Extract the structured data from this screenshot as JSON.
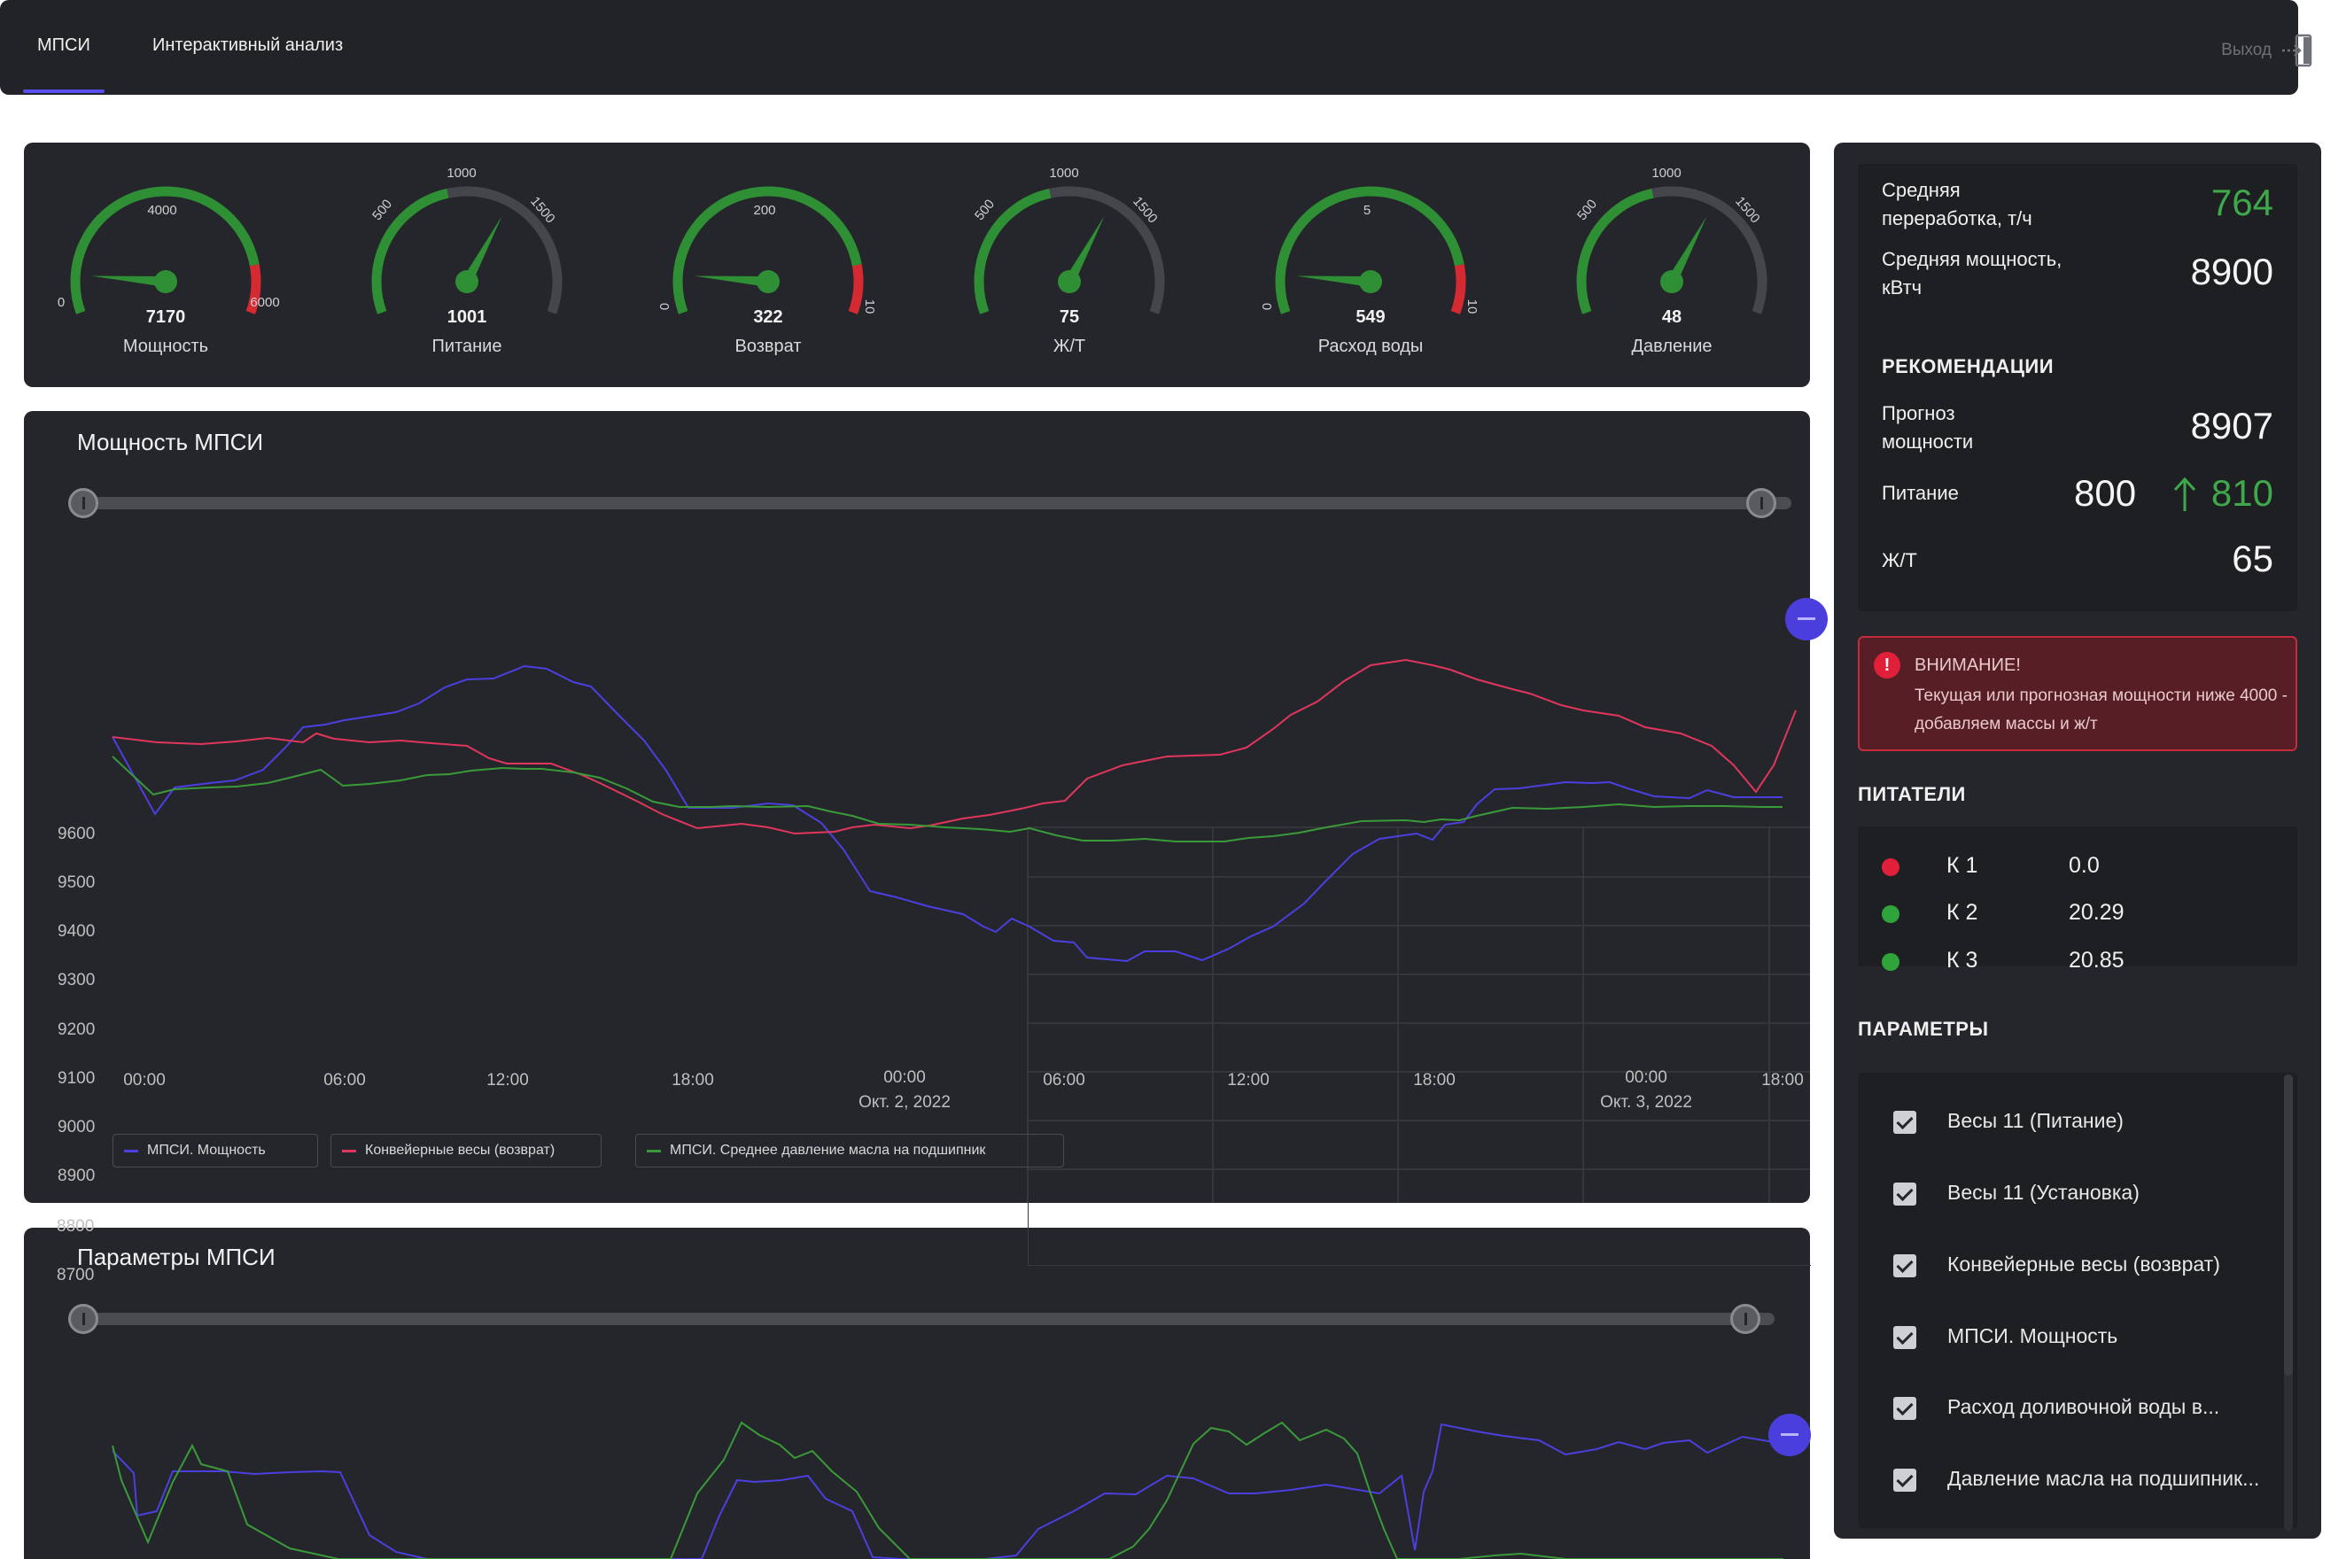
{
  "nav": {
    "tabs": [
      {
        "label": "МПСИ",
        "active": true
      },
      {
        "label": "Интерактивный анализ",
        "active": false
      }
    ],
    "logout_label": "Выход"
  },
  "gauges": [
    {
      "label": "Мощность",
      "value": "7170",
      "ticks": [
        "0",
        "4000",
        "6000"
      ]
    },
    {
      "label": "Питание",
      "value": "1001",
      "ticks": [
        "500",
        "1000",
        "1500"
      ]
    },
    {
      "label": "Возврат",
      "value": "322",
      "ticks": [
        "0",
        "200",
        "10"
      ]
    },
    {
      "label": "Ж/Т",
      "value": "75",
      "ticks": [
        "500",
        "1000",
        "1500"
      ]
    },
    {
      "label": "Расход воды",
      "value": "549",
      "ticks": [
        "0",
        "5",
        "10"
      ]
    },
    {
      "label": "Давление",
      "value": "48",
      "ticks": [
        "500",
        "1000",
        "1500"
      ]
    }
  ],
  "chart1": {
    "title": "Мощность МПСИ",
    "y_ticks": [
      "9600",
      "9500",
      "9400",
      "9300",
      "9200",
      "9100",
      "9000",
      "8900",
      "8800",
      "8700"
    ],
    "x_ticks": [
      {
        "time": "00:00",
        "date": ""
      },
      {
        "time": "06:00",
        "date": ""
      },
      {
        "time": "12:00",
        "date": ""
      },
      {
        "time": "18:00",
        "date": ""
      },
      {
        "time": "00:00",
        "date": "Окт. 2, 2022"
      },
      {
        "time": "06:00",
        "date": ""
      },
      {
        "time": "12:00",
        "date": ""
      },
      {
        "time": "18:00",
        "date": ""
      },
      {
        "time": "00:00",
        "date": "Окт. 3, 2022"
      },
      {
        "time": "18:00",
        "date": ""
      }
    ],
    "legend": [
      {
        "name": "МПСИ. Мощность",
        "color": "#4b3fe0"
      },
      {
        "name": "Конвейерные весы (возврат)",
        "color": "#e0365c"
      },
      {
        "name": "МПСИ. Среднее давление масла на подшипник",
        "color": "#3a9a3a"
      }
    ]
  },
  "chart2": {
    "title": "Параметры  МПСИ"
  },
  "summary": {
    "avg_processing": {
      "label": "Средняя переработка, т/ч",
      "value": "764",
      "color": "#3fa84a"
    },
    "avg_power": {
      "label": "Средняя мощность, кВтч",
      "value": "8900"
    }
  },
  "recommendations": {
    "heading": "РЕКОМЕНДАЦИИ",
    "forecast": {
      "label": "Прогноз мощности",
      "value": "8907"
    },
    "feed": {
      "label": "Питание",
      "value": "800",
      "target": "810",
      "target_color": "#3fa84a"
    },
    "zht": {
      "label": "Ж/Т",
      "value": "65"
    }
  },
  "alert": {
    "title": "ВНИМАНИЕ!",
    "text": "Текущая или прогнозная мощности ниже 4000 - добавляем массы и ж/т"
  },
  "feeders": {
    "heading": "ПИТАТЕЛИ",
    "items": [
      {
        "name": "К 1",
        "value": "0.0",
        "status_color": "#e0203a"
      },
      {
        "name": "К 2",
        "value": "20.29",
        "status_color": "#2fa43a"
      },
      {
        "name": "К 3",
        "value": "20.85",
        "status_color": "#2fa43a"
      }
    ]
  },
  "parameters": {
    "heading": "ПАРАМЕТРЫ",
    "items": [
      {
        "label": "Весы 11 (Питание)",
        "checked": true
      },
      {
        "label": "Весы 11 (Установка)",
        "checked": true
      },
      {
        "label": "Конвейерные весы (возврат)",
        "checked": true
      },
      {
        "label": "МПСИ. Мощность",
        "checked": true
      },
      {
        "label": "Расход доливочной воды в...",
        "checked": true
      },
      {
        "label": "Давление масла на подшипник...",
        "checked": true
      }
    ]
  }
}
